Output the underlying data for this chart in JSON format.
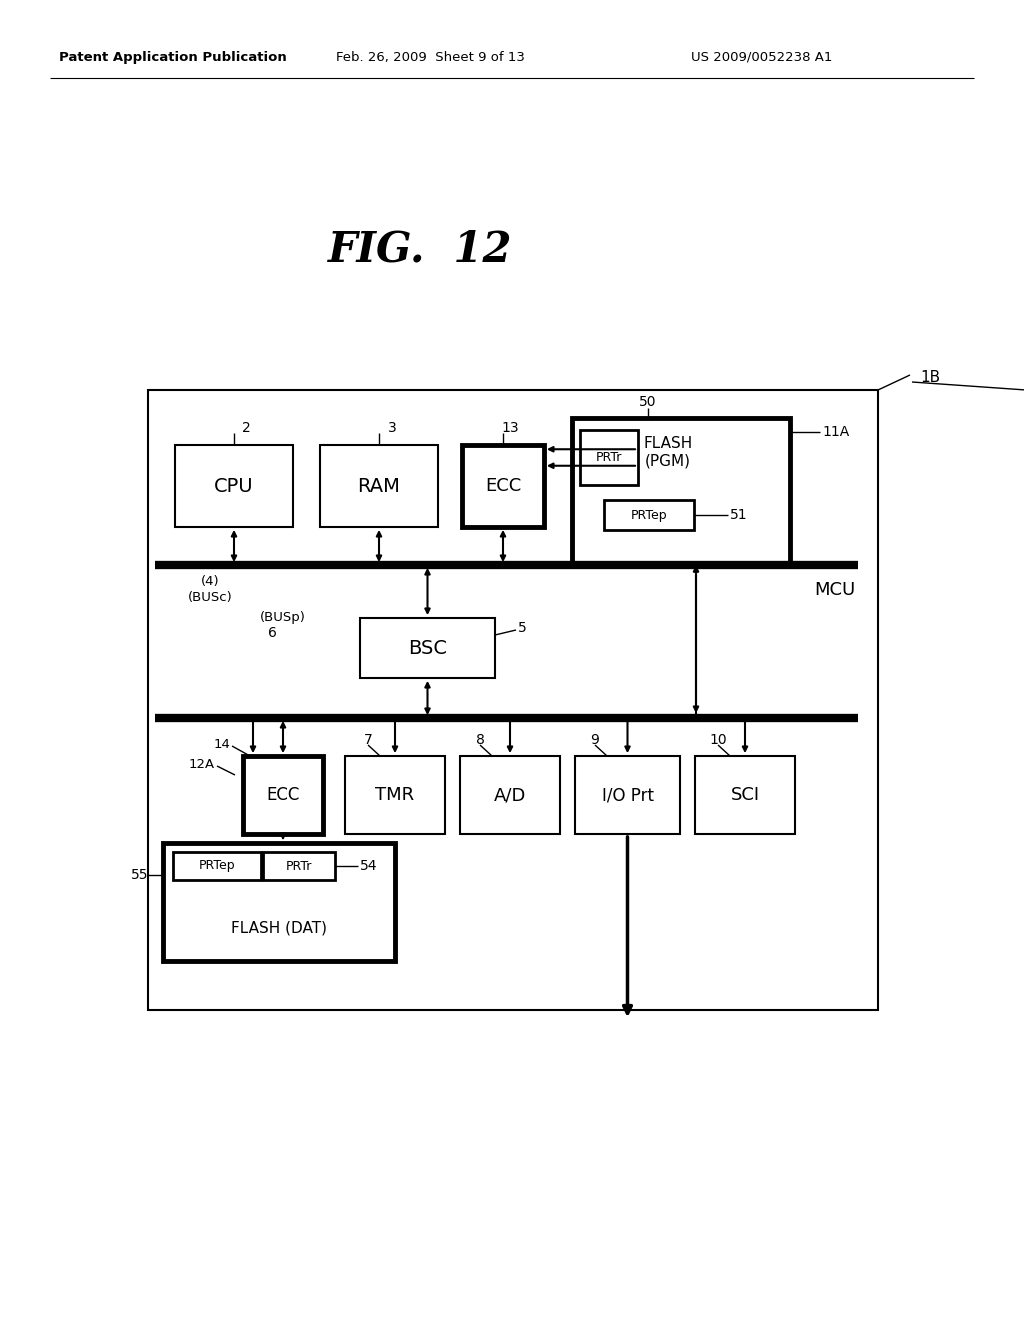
{
  "title": "FIG.  12",
  "header_left": "Patent Application Publication",
  "header_mid": "Feb. 26, 2009  Sheet 9 of 13",
  "header_right": "US 2009/0052238 A1",
  "bg_color": "#ffffff",
  "fig_width": 10.24,
  "fig_height": 13.2,
  "dpi": 100
}
